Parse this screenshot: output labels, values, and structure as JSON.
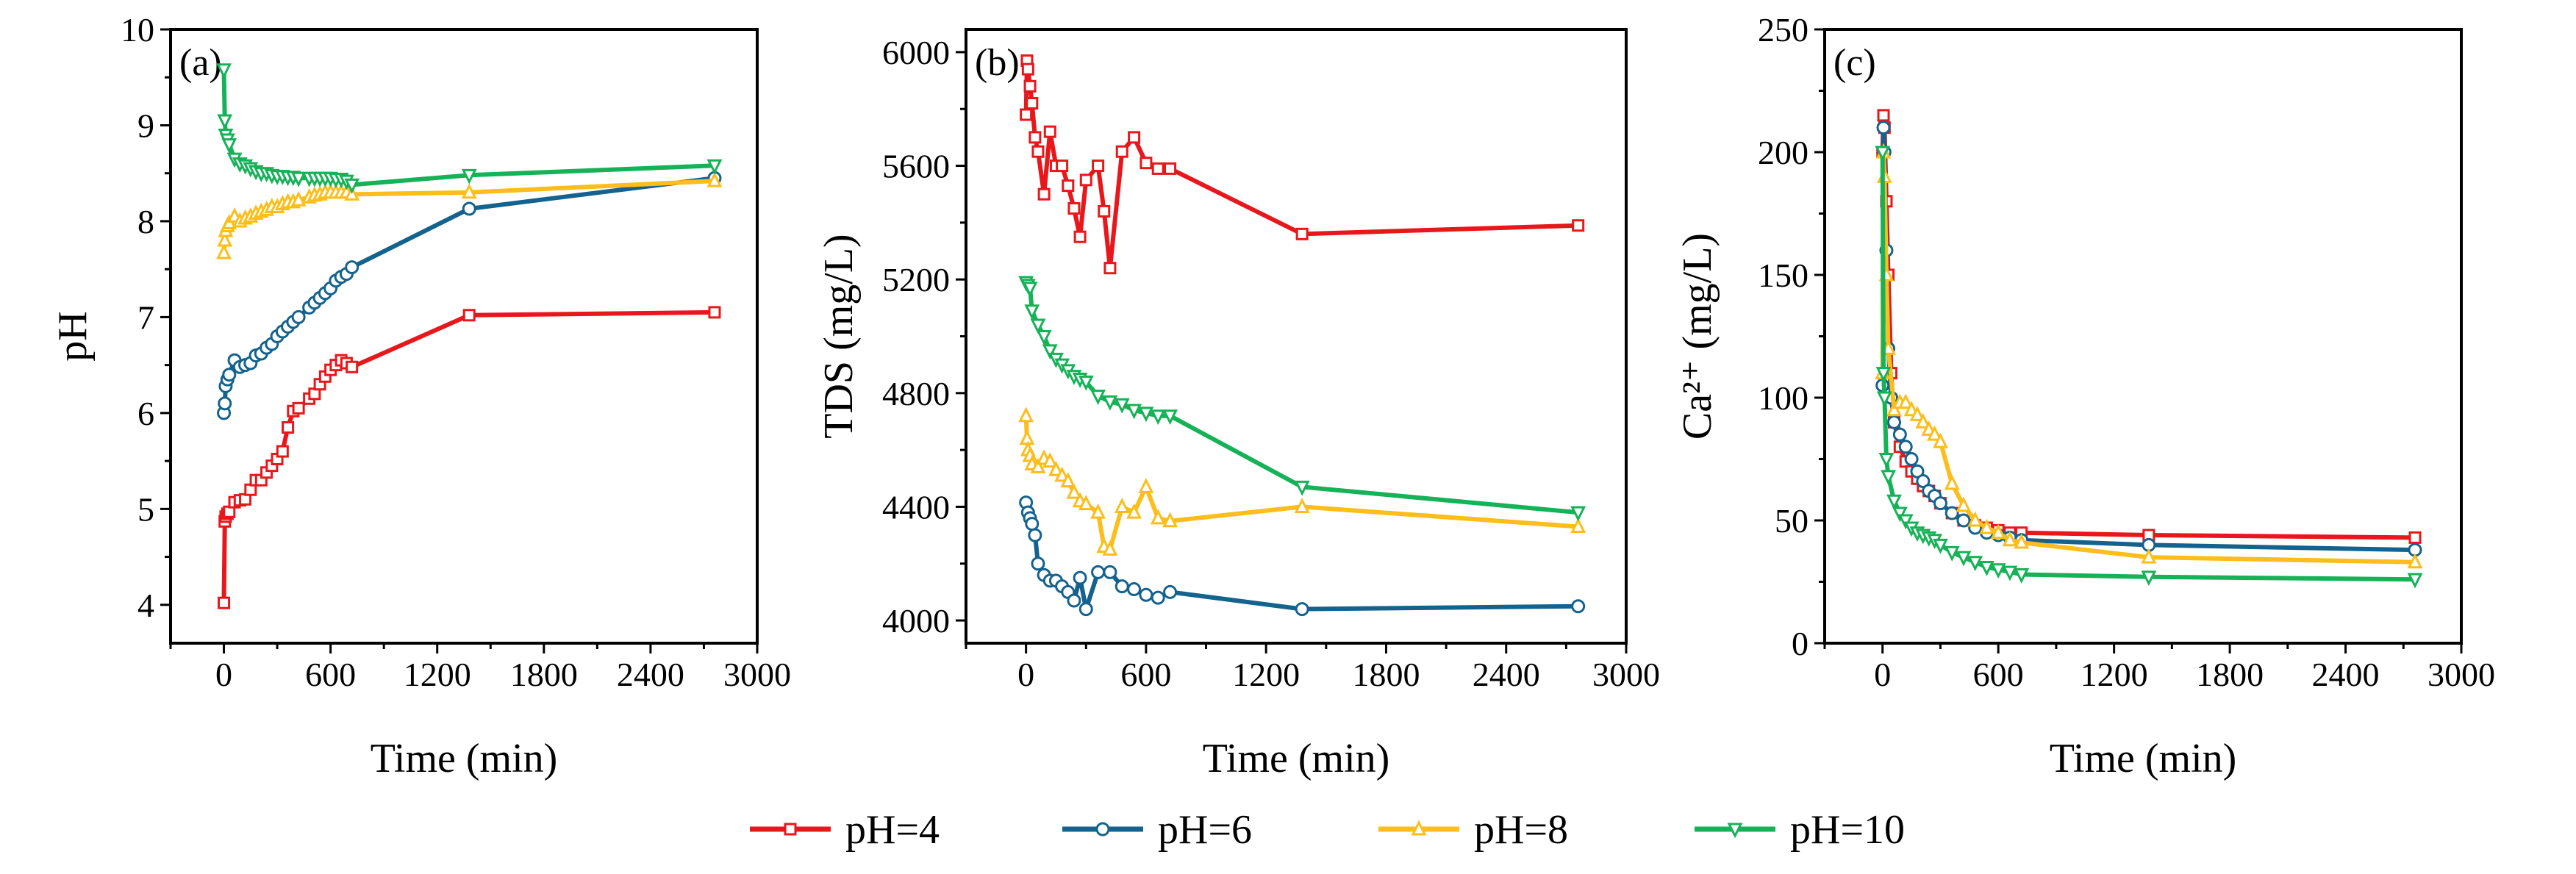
{
  "legend": [
    {
      "name": "pH=4",
      "color": "#e8171b",
      "marker": "square"
    },
    {
      "name": "pH=6",
      "color": "#14628e",
      "marker": "circle"
    },
    {
      "name": "pH=8",
      "color": "#fdbd1a",
      "marker": "triangle-up"
    },
    {
      "name": "pH=10",
      "color": "#15b257",
      "marker": "triangle-down"
    }
  ],
  "chart_data": [
    {
      "type": "line",
      "panel": "(a)",
      "xlabel": "Time (min)",
      "ylabel": "pH",
      "xlim": [
        -300,
        3000
      ],
      "ylim": [
        3.6,
        10
      ],
      "xticks": [
        0,
        600,
        1200,
        1800,
        2400,
        3000
      ],
      "yticks": [
        4,
        5,
        6,
        7,
        8,
        9,
        10
      ],
      "ytick_labels": [
        "4",
        "5",
        "6",
        "7",
        "8",
        "9",
        "10"
      ],
      "series": [
        {
          "name": "pH=4",
          "x": [
            0,
            5,
            10,
            20,
            30,
            60,
            90,
            120,
            150,
            180,
            210,
            240,
            270,
            300,
            330,
            360,
            390,
            420,
            480,
            510,
            540,
            570,
            600,
            630,
            660,
            690,
            720,
            1380,
            2760
          ],
          "y": [
            4.02,
            4.87,
            4.92,
            4.95,
            4.97,
            5.07,
            5.09,
            5.1,
            5.2,
            5.3,
            5.3,
            5.38,
            5.45,
            5.52,
            5.6,
            5.85,
            6.02,
            6.05,
            6.15,
            6.2,
            6.3,
            6.38,
            6.45,
            6.5,
            6.55,
            6.52,
            6.48,
            7.02,
            7.05
          ]
        },
        {
          "name": "pH=6",
          "x": [
            0,
            5,
            10,
            20,
            30,
            60,
            90,
            120,
            150,
            180,
            210,
            240,
            270,
            300,
            330,
            360,
            390,
            420,
            480,
            510,
            540,
            570,
            600,
            630,
            660,
            690,
            720,
            1380,
            2760
          ],
          "y": [
            6.0,
            6.1,
            6.28,
            6.35,
            6.4,
            6.55,
            6.48,
            6.5,
            6.52,
            6.6,
            6.62,
            6.68,
            6.72,
            6.8,
            6.85,
            6.9,
            6.95,
            7.0,
            7.1,
            7.15,
            7.2,
            7.25,
            7.3,
            7.38,
            7.42,
            7.45,
            7.52,
            8.13,
            8.45
          ]
        },
        {
          "name": "pH=8",
          "x": [
            0,
            5,
            10,
            20,
            30,
            60,
            90,
            120,
            150,
            180,
            210,
            240,
            270,
            300,
            330,
            360,
            390,
            420,
            480,
            510,
            540,
            570,
            600,
            630,
            660,
            690,
            720,
            1380,
            2760
          ],
          "y": [
            7.67,
            7.8,
            7.9,
            7.95,
            7.98,
            8.05,
            8.0,
            8.03,
            8.05,
            8.08,
            8.1,
            8.12,
            8.15,
            8.15,
            8.18,
            8.2,
            8.2,
            8.22,
            8.25,
            8.27,
            8.28,
            8.3,
            8.3,
            8.3,
            8.3,
            8.3,
            8.28,
            8.3,
            8.42
          ]
        },
        {
          "name": "pH=10",
          "x": [
            0,
            5,
            10,
            20,
            30,
            60,
            90,
            120,
            150,
            180,
            210,
            240,
            270,
            300,
            330,
            360,
            390,
            420,
            480,
            510,
            540,
            570,
            600,
            630,
            660,
            690,
            720,
            1380,
            2760
          ],
          "y": [
            9.58,
            9.05,
            8.9,
            8.85,
            8.8,
            8.65,
            8.6,
            8.58,
            8.55,
            8.52,
            8.5,
            8.5,
            8.48,
            8.47,
            8.47,
            8.46,
            8.46,
            8.45,
            8.45,
            8.45,
            8.45,
            8.45,
            8.45,
            8.44,
            8.44,
            8.42,
            8.38,
            8.48,
            8.58
          ]
        }
      ]
    },
    {
      "type": "line",
      "panel": "(b)",
      "xlabel": "Time (min)",
      "ylabel": "TDS (mg/L)",
      "xlim": [
        -300,
        3000
      ],
      "ylim": [
        3920,
        6080
      ],
      "xticks": [
        0,
        600,
        1200,
        1800,
        2400,
        3000
      ],
      "yticks": [
        4000,
        4400,
        4800,
        5200,
        5600,
        6000
      ],
      "ytick_labels": [
        "4000",
        "4400",
        "4800",
        "5200",
        "5600",
        "6000"
      ],
      "series": [
        {
          "name": "pH=4",
          "x": [
            0,
            5,
            10,
            20,
            30,
            45,
            60,
            90,
            120,
            150,
            180,
            210,
            240,
            270,
            300,
            360,
            390,
            420,
            480,
            540,
            600,
            660,
            720,
            1380,
            2760
          ],
          "y": [
            5780,
            5970,
            5940,
            5880,
            5820,
            5700,
            5650,
            5500,
            5720,
            5600,
            5600,
            5530,
            5450,
            5350,
            5550,
            5600,
            5440,
            5240,
            5650,
            5700,
            5610,
            5590,
            5590,
            5360,
            5390
          ]
        },
        {
          "name": "pH=6",
          "x": [
            0,
            10,
            20,
            30,
            45,
            60,
            90,
            120,
            150,
            180,
            210,
            240,
            270,
            300,
            360,
            420,
            480,
            540,
            600,
            660,
            720,
            1380,
            2760
          ],
          "y": [
            4415,
            4380,
            4360,
            4340,
            4300,
            4200,
            4160,
            4140,
            4140,
            4120,
            4100,
            4070,
            4150,
            4040,
            4170,
            4170,
            4120,
            4110,
            4090,
            4080,
            4100,
            4040,
            4050
          ]
        },
        {
          "name": "pH=8",
          "x": [
            0,
            5,
            10,
            20,
            30,
            60,
            90,
            120,
            150,
            180,
            210,
            240,
            270,
            300,
            360,
            390,
            420,
            480,
            540,
            600,
            660,
            720,
            1380,
            2760
          ],
          "y": [
            4720,
            4640,
            4600,
            4580,
            4550,
            4540,
            4570,
            4560,
            4530,
            4510,
            4490,
            4450,
            4420,
            4410,
            4380,
            4260,
            4250,
            4400,
            4380,
            4470,
            4360,
            4350,
            4400,
            4330
          ]
        },
        {
          "name": "pH=10",
          "x": [
            0,
            10,
            20,
            30,
            60,
            90,
            120,
            150,
            180,
            210,
            240,
            270,
            300,
            360,
            420,
            480,
            540,
            600,
            660,
            720,
            1380,
            2760
          ],
          "y": [
            5190,
            5180,
            5170,
            5090,
            5040,
            5000,
            4950,
            4920,
            4900,
            4880,
            4860,
            4850,
            4840,
            4790,
            4770,
            4760,
            4740,
            4730,
            4720,
            4720,
            4470,
            4380
          ]
        }
      ]
    },
    {
      "type": "line",
      "panel": "(c)",
      "xlabel": "Time (min)",
      "ylabel": "Ca²⁺ (mg/L)",
      "xlim": [
        -300,
        3000
      ],
      "ylim": [
        0,
        250
      ],
      "xticks": [
        0,
        600,
        1200,
        1800,
        2400,
        3000
      ],
      "yticks": [
        0,
        50,
        100,
        150,
        200,
        250
      ],
      "ytick_labels": [
        "0",
        "50",
        "100",
        "150",
        "200",
        "250"
      ],
      "series": [
        {
          "name": "pH=4",
          "x": [
            0,
            5,
            10,
            20,
            30,
            45,
            60,
            90,
            120,
            150,
            180,
            210,
            240,
            270,
            300,
            360,
            420,
            480,
            540,
            600,
            660,
            720,
            1380,
            2760
          ],
          "y": [
            200,
            215,
            210,
            180,
            150,
            110,
            90,
            80,
            74,
            70,
            67,
            64,
            62,
            60,
            57,
            53,
            50,
            48,
            47,
            46,
            45,
            45,
            44,
            43
          ]
        },
        {
          "name": "pH=6",
          "x": [
            0,
            5,
            10,
            20,
            30,
            45,
            60,
            90,
            120,
            150,
            180,
            210,
            240,
            270,
            300,
            360,
            420,
            480,
            540,
            600,
            660,
            720,
            1380,
            2760
          ],
          "y": [
            105,
            210,
            200,
            160,
            120,
            100,
            90,
            85,
            80,
            75,
            70,
            66,
            62,
            60,
            57,
            53,
            50,
            47,
            45,
            44,
            43,
            42,
            40,
            38
          ]
        },
        {
          "name": "pH=8",
          "x": [
            0,
            5,
            10,
            20,
            30,
            60,
            90,
            120,
            150,
            180,
            210,
            240,
            270,
            300,
            360,
            420,
            480,
            540,
            600,
            660,
            720,
            1380,
            2760
          ],
          "y": [
            110,
            200,
            190,
            150,
            120,
            95,
            98,
            98,
            95,
            93,
            90,
            87,
            85,
            82,
            65,
            56,
            50,
            47,
            45,
            42,
            41,
            35,
            33
          ]
        },
        {
          "name": "pH=10",
          "x": [
            0,
            5,
            10,
            20,
            30,
            60,
            90,
            120,
            150,
            180,
            210,
            240,
            270,
            300,
            360,
            420,
            480,
            540,
            600,
            660,
            720,
            1380,
            2760
          ],
          "y": [
            200,
            110,
            100,
            75,
            68,
            58,
            53,
            50,
            47,
            45,
            44,
            43,
            42,
            40,
            37,
            35,
            33,
            31,
            30,
            29,
            28,
            27,
            26
          ]
        }
      ]
    }
  ]
}
